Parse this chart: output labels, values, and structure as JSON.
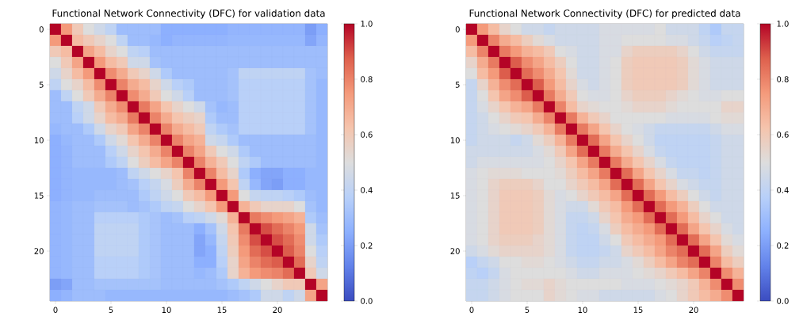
{
  "chart_data": [
    {
      "type": "heatmap",
      "title": "Functional Network Connectivity (DFC) for validation data",
      "categories": [
        "0",
        null,
        null,
        null,
        null,
        "5",
        null,
        null,
        null,
        null,
        "10",
        null,
        null,
        null,
        null,
        "15",
        null,
        null,
        null,
        null,
        "20",
        null,
        null,
        null,
        null
      ],
      "y_categories": [
        "0",
        null,
        null,
        null,
        null,
        "5",
        null,
        null,
        null,
        null,
        "10",
        null,
        null,
        null,
        null,
        "15",
        null,
        null,
        null,
        null,
        "20",
        null,
        null,
        null,
        null
      ],
      "clim": [
        0,
        1
      ],
      "cticks": [
        {
          "value": 0,
          "label": "0.0"
        },
        {
          "value": 0.2,
          "label": "0.2"
        },
        {
          "value": 0.4,
          "label": "0.4"
        },
        {
          "value": 0.6,
          "label": "0.6"
        },
        {
          "value": 0.8,
          "label": "0.8"
        },
        {
          "value": 1,
          "label": "1.0"
        }
      ],
      "cells": [
        [
          1,
          0.75,
          0.6,
          0.5,
          0.45,
          0.4,
          0.3,
          0.3,
          0.3,
          0.3,
          0.25,
          0.25,
          0.25,
          0.25,
          0.25,
          0.25,
          0.27,
          0.27,
          0.27,
          0.27,
          0.27,
          0.27,
          0.27,
          0.2,
          0.25
        ],
        [
          0.75,
          1,
          0.65,
          0.6,
          0.55,
          0.5,
          0.4,
          0.3,
          0.3,
          0.28,
          0.25,
          0.27,
          0.27,
          0.27,
          0.27,
          0.27,
          0.28,
          0.28,
          0.28,
          0.28,
          0.28,
          0.28,
          0.28,
          0.22,
          0.27
        ],
        [
          0.6,
          0.65,
          1,
          0.72,
          0.65,
          0.55,
          0.5,
          0.4,
          0.38,
          0.3,
          0.3,
          0.3,
          0.3,
          0.3,
          0.3,
          0.3,
          0.3,
          0.3,
          0.3,
          0.3,
          0.3,
          0.3,
          0.3,
          0.3,
          0.3
        ],
        [
          0.5,
          0.6,
          0.72,
          1,
          0.75,
          0.65,
          0.6,
          0.45,
          0.45,
          0.32,
          0.3,
          0.3,
          0.3,
          0.3,
          0.3,
          0.3,
          0.3,
          0.3,
          0.3,
          0.3,
          0.3,
          0.3,
          0.3,
          0.3,
          0.3
        ],
        [
          0.45,
          0.55,
          0.65,
          0.75,
          1,
          0.78,
          0.7,
          0.6,
          0.55,
          0.45,
          0.35,
          0.3,
          0.3,
          0.3,
          0.3,
          0.3,
          0.32,
          0.4,
          0.4,
          0.4,
          0.4,
          0.4,
          0.4,
          0.32,
          0.3
        ],
        [
          0.4,
          0.5,
          0.55,
          0.65,
          0.78,
          1,
          0.8,
          0.7,
          0.65,
          0.55,
          0.45,
          0.38,
          0.35,
          0.3,
          0.3,
          0.3,
          0.32,
          0.38,
          0.38,
          0.38,
          0.38,
          0.38,
          0.38,
          0.32,
          0.28
        ],
        [
          0.3,
          0.4,
          0.5,
          0.6,
          0.7,
          0.8,
          1,
          0.78,
          0.7,
          0.6,
          0.5,
          0.45,
          0.38,
          0.3,
          0.3,
          0.3,
          0.32,
          0.38,
          0.38,
          0.38,
          0.38,
          0.38,
          0.38,
          0.32,
          0.28
        ],
        [
          0.3,
          0.3,
          0.4,
          0.45,
          0.6,
          0.7,
          0.78,
          1,
          0.82,
          0.72,
          0.62,
          0.55,
          0.5,
          0.45,
          0.32,
          0.28,
          0.3,
          0.38,
          0.38,
          0.38,
          0.38,
          0.38,
          0.38,
          0.32,
          0.28
        ],
        [
          0.3,
          0.3,
          0.38,
          0.45,
          0.55,
          0.65,
          0.7,
          0.82,
          1,
          0.8,
          0.7,
          0.62,
          0.58,
          0.55,
          0.35,
          0.3,
          0.3,
          0.38,
          0.38,
          0.38,
          0.38,
          0.38,
          0.38,
          0.32,
          0.28
        ],
        [
          0.28,
          0.3,
          0.3,
          0.35,
          0.45,
          0.55,
          0.6,
          0.72,
          0.8,
          1,
          0.8,
          0.7,
          0.65,
          0.6,
          0.4,
          0.35,
          0.32,
          0.38,
          0.38,
          0.38,
          0.38,
          0.38,
          0.38,
          0.32,
          0.28
        ],
        [
          0.25,
          0.28,
          0.3,
          0.3,
          0.35,
          0.45,
          0.52,
          0.62,
          0.7,
          0.8,
          1,
          0.8,
          0.72,
          0.68,
          0.45,
          0.42,
          0.35,
          0.3,
          0.3,
          0.3,
          0.3,
          0.3,
          0.3,
          0.3,
          0.28
        ],
        [
          0.25,
          0.27,
          0.3,
          0.3,
          0.3,
          0.38,
          0.45,
          0.55,
          0.62,
          0.7,
          0.8,
          1,
          0.8,
          0.72,
          0.6,
          0.5,
          0.45,
          0.35,
          0.3,
          0.3,
          0.3,
          0.3,
          0.3,
          0.3,
          0.28
        ],
        [
          0.25,
          0.27,
          0.3,
          0.3,
          0.3,
          0.35,
          0.4,
          0.5,
          0.58,
          0.65,
          0.72,
          0.8,
          1,
          0.8,
          0.68,
          0.6,
          0.5,
          0.4,
          0.35,
          0.3,
          0.3,
          0.3,
          0.3,
          0.3,
          0.28
        ],
        [
          0.25,
          0.27,
          0.28,
          0.28,
          0.28,
          0.28,
          0.3,
          0.4,
          0.45,
          0.5,
          0.55,
          0.62,
          0.8,
          1,
          0.8,
          0.65,
          0.55,
          0.35,
          0.25,
          0.22,
          0.22,
          0.25,
          0.25,
          0.28,
          0.28
        ],
        [
          0.25,
          0.27,
          0.28,
          0.28,
          0.28,
          0.28,
          0.3,
          0.32,
          0.38,
          0.42,
          0.48,
          0.58,
          0.7,
          0.8,
          1,
          0.75,
          0.62,
          0.4,
          0.28,
          0.22,
          0.2,
          0.25,
          0.25,
          0.28,
          0.28
        ],
        [
          0.25,
          0.27,
          0.28,
          0.28,
          0.3,
          0.3,
          0.3,
          0.3,
          0.35,
          0.4,
          0.45,
          0.5,
          0.6,
          0.65,
          0.75,
          1,
          0.75,
          0.5,
          0.42,
          0.4,
          0.4,
          0.38,
          0.35,
          0.3,
          0.28
        ],
        [
          0.27,
          0.28,
          0.3,
          0.3,
          0.32,
          0.32,
          0.32,
          0.3,
          0.32,
          0.35,
          0.4,
          0.42,
          0.5,
          0.55,
          0.62,
          0.75,
          1,
          0.68,
          0.6,
          0.55,
          0.55,
          0.55,
          0.5,
          0.32,
          0.28
        ],
        [
          0.27,
          0.28,
          0.3,
          0.3,
          0.38,
          0.38,
          0.38,
          0.38,
          0.35,
          0.33,
          0.3,
          0.32,
          0.38,
          0.4,
          0.45,
          0.52,
          0.68,
          1,
          0.82,
          0.78,
          0.75,
          0.72,
          0.68,
          0.35,
          0.3
        ],
        [
          0.27,
          0.28,
          0.3,
          0.3,
          0.4,
          0.4,
          0.4,
          0.4,
          0.35,
          0.33,
          0.3,
          0.3,
          0.3,
          0.25,
          0.32,
          0.45,
          0.62,
          0.82,
          1,
          0.9,
          0.85,
          0.8,
          0.75,
          0.45,
          0.32
        ],
        [
          0.27,
          0.28,
          0.3,
          0.3,
          0.4,
          0.4,
          0.4,
          0.4,
          0.35,
          0.33,
          0.3,
          0.3,
          0.3,
          0.22,
          0.28,
          0.42,
          0.6,
          0.78,
          0.9,
          1,
          0.9,
          0.85,
          0.78,
          0.45,
          0.35
        ],
        [
          0.27,
          0.28,
          0.3,
          0.3,
          0.4,
          0.4,
          0.4,
          0.4,
          0.35,
          0.33,
          0.3,
          0.3,
          0.3,
          0.22,
          0.25,
          0.4,
          0.58,
          0.75,
          0.85,
          0.9,
          1,
          0.88,
          0.8,
          0.5,
          0.38
        ],
        [
          0.27,
          0.28,
          0.3,
          0.3,
          0.38,
          0.38,
          0.38,
          0.38,
          0.35,
          0.33,
          0.3,
          0.3,
          0.3,
          0.25,
          0.25,
          0.38,
          0.55,
          0.72,
          0.8,
          0.85,
          0.88,
          1,
          0.85,
          0.55,
          0.4
        ],
        [
          0.27,
          0.28,
          0.3,
          0.3,
          0.38,
          0.38,
          0.38,
          0.38,
          0.35,
          0.33,
          0.3,
          0.3,
          0.3,
          0.28,
          0.3,
          0.35,
          0.55,
          0.68,
          0.75,
          0.78,
          0.8,
          0.85,
          1,
          0.6,
          0.45
        ],
        [
          0.2,
          0.22,
          0.3,
          0.3,
          0.32,
          0.32,
          0.32,
          0.32,
          0.32,
          0.32,
          0.3,
          0.3,
          0.3,
          0.3,
          0.3,
          0.32,
          0.35,
          0.4,
          0.45,
          0.5,
          0.55,
          0.6,
          0.6,
          1,
          0.72
        ],
        [
          0.25,
          0.27,
          0.3,
          0.3,
          0.3,
          0.28,
          0.28,
          0.28,
          0.28,
          0.28,
          0.28,
          0.28,
          0.28,
          0.28,
          0.28,
          0.28,
          0.3,
          0.32,
          0.35,
          0.45,
          0.45,
          0.4,
          0.45,
          0.72,
          1
        ]
      ]
    },
    {
      "type": "heatmap",
      "title": "Functional Network Connectivity (DFC) for predicted data",
      "categories": [
        "0",
        null,
        null,
        null,
        null,
        "5",
        null,
        null,
        null,
        null,
        "10",
        null,
        null,
        null,
        null,
        "15",
        null,
        null,
        null,
        null,
        "20",
        null,
        null,
        null,
        null
      ],
      "y_categories": [
        "0",
        null,
        null,
        null,
        null,
        "5",
        null,
        null,
        null,
        null,
        "10",
        null,
        null,
        null,
        null,
        "15",
        null,
        null,
        null,
        null,
        "20",
        null,
        null,
        null,
        null
      ],
      "clim": [
        0,
        1
      ],
      "cticks": [
        {
          "value": 0,
          "label": "0.0"
        },
        {
          "value": 0.2,
          "label": "0.2"
        },
        {
          "value": 0.4,
          "label": "0.4"
        },
        {
          "value": 0.6,
          "label": "0.6"
        },
        {
          "value": 0.8,
          "label": "0.8"
        },
        {
          "value": 1,
          "label": "1.0"
        }
      ],
      "cells": [
        [
          1,
          0.75,
          0.65,
          0.55,
          0.5,
          0.45,
          0.45,
          0.42,
          0.45,
          0.45,
          0.45,
          0.45,
          0.48,
          0.48,
          0.48,
          0.48,
          0.48,
          0.5,
          0.45,
          0.45,
          0.45,
          0.4,
          0.35,
          0.42,
          0.42
        ],
        [
          0.75,
          1,
          0.8,
          0.7,
          0.65,
          0.58,
          0.52,
          0.48,
          0.45,
          0.45,
          0.45,
          0.45,
          0.48,
          0.48,
          0.5,
          0.5,
          0.5,
          0.5,
          0.48,
          0.48,
          0.45,
          0.42,
          0.38,
          0.4,
          0.42
        ],
        [
          0.65,
          0.8,
          1,
          0.82,
          0.75,
          0.68,
          0.65,
          0.6,
          0.5,
          0.48,
          0.45,
          0.45,
          0.48,
          0.48,
          0.55,
          0.58,
          0.58,
          0.58,
          0.58,
          0.55,
          0.5,
          0.45,
          0.42,
          0.42,
          0.42
        ],
        [
          0.55,
          0.7,
          0.82,
          1,
          0.88,
          0.78,
          0.72,
          0.65,
          0.58,
          0.5,
          0.45,
          0.45,
          0.48,
          0.5,
          0.58,
          0.6,
          0.6,
          0.6,
          0.6,
          0.58,
          0.52,
          0.48,
          0.45,
          0.45,
          0.45
        ],
        [
          0.5,
          0.65,
          0.75,
          0.88,
          1,
          0.85,
          0.78,
          0.7,
          0.62,
          0.52,
          0.45,
          0.45,
          0.48,
          0.5,
          0.58,
          0.6,
          0.6,
          0.6,
          0.6,
          0.58,
          0.52,
          0.48,
          0.45,
          0.45,
          0.45
        ],
        [
          0.42,
          0.55,
          0.68,
          0.78,
          0.85,
          1,
          0.88,
          0.75,
          0.65,
          0.55,
          0.48,
          0.45,
          0.48,
          0.5,
          0.58,
          0.6,
          0.6,
          0.6,
          0.6,
          0.58,
          0.52,
          0.48,
          0.45,
          0.45,
          0.45
        ],
        [
          0.42,
          0.5,
          0.62,
          0.72,
          0.78,
          0.88,
          1,
          0.82,
          0.7,
          0.6,
          0.5,
          0.48,
          0.48,
          0.5,
          0.55,
          0.58,
          0.58,
          0.58,
          0.55,
          0.52,
          0.5,
          0.48,
          0.48,
          0.5,
          0.5
        ],
        [
          0.42,
          0.48,
          0.55,
          0.62,
          0.68,
          0.72,
          0.82,
          1,
          0.8,
          0.65,
          0.55,
          0.52,
          0.5,
          0.5,
          0.52,
          0.55,
          0.55,
          0.55,
          0.52,
          0.5,
          0.5,
          0.5,
          0.5,
          0.55,
          0.55
        ],
        [
          0.42,
          0.45,
          0.5,
          0.55,
          0.6,
          0.62,
          0.7,
          0.8,
          1,
          0.82,
          0.68,
          0.6,
          0.55,
          0.5,
          0.5,
          0.5,
          0.5,
          0.5,
          0.48,
          0.48,
          0.48,
          0.48,
          0.5,
          0.52,
          0.52
        ],
        [
          0.42,
          0.45,
          0.48,
          0.5,
          0.52,
          0.55,
          0.6,
          0.68,
          0.82,
          1,
          0.82,
          0.72,
          0.62,
          0.55,
          0.5,
          0.48,
          0.45,
          0.42,
          0.42,
          0.42,
          0.42,
          0.42,
          0.45,
          0.48,
          0.48
        ],
        [
          0.42,
          0.45,
          0.45,
          0.45,
          0.42,
          0.45,
          0.52,
          0.58,
          0.68,
          0.82,
          1,
          0.85,
          0.72,
          0.62,
          0.55,
          0.5,
          0.45,
          0.4,
          0.4,
          0.4,
          0.4,
          0.4,
          0.42,
          0.45,
          0.45
        ],
        [
          0.45,
          0.45,
          0.45,
          0.45,
          0.45,
          0.45,
          0.48,
          0.52,
          0.6,
          0.72,
          0.85,
          1,
          0.82,
          0.7,
          0.62,
          0.55,
          0.48,
          0.42,
          0.4,
          0.4,
          0.4,
          0.4,
          0.42,
          0.45,
          0.45
        ],
        [
          0.45,
          0.48,
          0.48,
          0.48,
          0.48,
          0.48,
          0.48,
          0.5,
          0.55,
          0.62,
          0.72,
          0.82,
          1,
          0.82,
          0.7,
          0.62,
          0.55,
          0.48,
          0.42,
          0.4,
          0.4,
          0.4,
          0.42,
          0.45,
          0.45
        ],
        [
          0.48,
          0.5,
          0.52,
          0.52,
          0.52,
          0.5,
          0.5,
          0.5,
          0.52,
          0.58,
          0.65,
          0.72,
          0.82,
          1,
          0.85,
          0.72,
          0.62,
          0.55,
          0.48,
          0.42,
          0.42,
          0.4,
          0.42,
          0.45,
          0.45
        ],
        [
          0.48,
          0.5,
          0.55,
          0.58,
          0.58,
          0.58,
          0.55,
          0.5,
          0.5,
          0.55,
          0.6,
          0.65,
          0.72,
          0.85,
          1,
          0.85,
          0.72,
          0.62,
          0.55,
          0.48,
          0.45,
          0.42,
          0.42,
          0.45,
          0.45
        ],
        [
          0.48,
          0.5,
          0.55,
          0.6,
          0.6,
          0.6,
          0.58,
          0.52,
          0.48,
          0.5,
          0.55,
          0.6,
          0.65,
          0.72,
          0.85,
          1,
          0.85,
          0.75,
          0.65,
          0.58,
          0.5,
          0.45,
          0.42,
          0.45,
          0.45
        ],
        [
          0.48,
          0.5,
          0.55,
          0.6,
          0.6,
          0.6,
          0.58,
          0.52,
          0.48,
          0.45,
          0.45,
          0.52,
          0.6,
          0.65,
          0.75,
          0.85,
          1,
          0.85,
          0.75,
          0.68,
          0.58,
          0.5,
          0.45,
          0.45,
          0.45
        ],
        [
          0.48,
          0.5,
          0.55,
          0.6,
          0.6,
          0.6,
          0.58,
          0.52,
          0.48,
          0.42,
          0.42,
          0.45,
          0.55,
          0.62,
          0.7,
          0.75,
          0.85,
          1,
          0.85,
          0.75,
          0.65,
          0.55,
          0.5,
          0.45,
          0.45
        ],
        [
          0.48,
          0.5,
          0.55,
          0.6,
          0.6,
          0.6,
          0.58,
          0.52,
          0.48,
          0.42,
          0.4,
          0.42,
          0.48,
          0.58,
          0.65,
          0.7,
          0.75,
          0.85,
          1,
          0.85,
          0.72,
          0.62,
          0.55,
          0.48,
          0.45
        ],
        [
          0.48,
          0.5,
          0.55,
          0.58,
          0.58,
          0.58,
          0.55,
          0.52,
          0.48,
          0.42,
          0.4,
          0.4,
          0.45,
          0.5,
          0.6,
          0.65,
          0.7,
          0.75,
          0.85,
          1,
          0.85,
          0.72,
          0.62,
          0.52,
          0.48
        ],
        [
          0.45,
          0.48,
          0.52,
          0.55,
          0.55,
          0.55,
          0.55,
          0.52,
          0.48,
          0.42,
          0.4,
          0.4,
          0.42,
          0.45,
          0.55,
          0.6,
          0.65,
          0.72,
          0.8,
          0.85,
          1,
          0.85,
          0.72,
          0.58,
          0.52
        ],
        [
          0.38,
          0.42,
          0.45,
          0.5,
          0.5,
          0.52,
          0.52,
          0.5,
          0.48,
          0.45,
          0.42,
          0.42,
          0.45,
          0.45,
          0.48,
          0.52,
          0.58,
          0.65,
          0.72,
          0.8,
          0.85,
          1,
          0.8,
          0.65,
          0.58
        ],
        [
          0.4,
          0.38,
          0.42,
          0.48,
          0.5,
          0.5,
          0.5,
          0.5,
          0.5,
          0.48,
          0.45,
          0.45,
          0.48,
          0.48,
          0.48,
          0.5,
          0.52,
          0.55,
          0.6,
          0.65,
          0.72,
          0.8,
          1,
          0.78,
          0.68
        ],
        [
          0.42,
          0.42,
          0.45,
          0.48,
          0.5,
          0.52,
          0.52,
          0.55,
          0.52,
          0.5,
          0.5,
          0.5,
          0.5,
          0.5,
          0.48,
          0.48,
          0.48,
          0.5,
          0.52,
          0.55,
          0.6,
          0.68,
          0.78,
          1,
          0.78
        ],
        [
          0.42,
          0.42,
          0.45,
          0.48,
          0.5,
          0.5,
          0.5,
          0.55,
          0.52,
          0.5,
          0.48,
          0.48,
          0.45,
          0.45,
          0.45,
          0.45,
          0.45,
          0.48,
          0.5,
          0.55,
          0.6,
          0.65,
          0.7,
          0.78,
          1
        ]
      ]
    }
  ]
}
